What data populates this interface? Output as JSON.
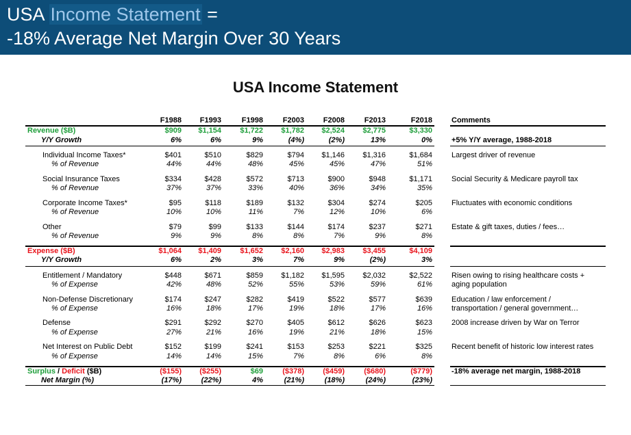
{
  "banner": {
    "line1_prefix": "USA ",
    "line1_highlight": "Income Statement",
    "line1_suffix": " =",
    "line2": "-18% Average Net Margin Over 30 Years"
  },
  "title": "USA Income Statement",
  "columns": [
    "F1988",
    "F1993",
    "F1998",
    "F2003",
    "F2008",
    "F2013",
    "F2018"
  ],
  "comments_header": "Comments",
  "colors": {
    "banner": "#0d4d78",
    "green": "#1e9e3a",
    "red": "#e8141c"
  },
  "rows": [
    {
      "label": "Revenue ($B)",
      "style": "section-green",
      "values": [
        "$909",
        "$1,154",
        "$1,722",
        "$1,782",
        "$2,524",
        "$2,775",
        "$3,330"
      ],
      "comment": ""
    },
    {
      "label": "Y/Y Growth",
      "style": "sub-bold",
      "values": [
        "6%",
        "6%",
        "9%",
        "(4%)",
        "(2%)",
        "13%",
        "0%"
      ],
      "comment": "+5% Y/Y average, 1988-2018"
    },
    {
      "label": "Individual Income Taxes*",
      "style": "item",
      "values": [
        "$401",
        "$510",
        "$829",
        "$794",
        "$1,146",
        "$1,316",
        "$1,684"
      ],
      "comment": "Largest driver of revenue"
    },
    {
      "label": "% of Revenue",
      "style": "sub",
      "values": [
        "44%",
        "44%",
        "48%",
        "45%",
        "45%",
        "47%",
        "51%"
      ],
      "comment": ""
    },
    {
      "label": "Social Insurance Taxes",
      "style": "item",
      "values": [
        "$334",
        "$428",
        "$572",
        "$713",
        "$900",
        "$948",
        "$1,171"
      ],
      "comment": "Social Security & Medicare payroll tax"
    },
    {
      "label": "% of Revenue",
      "style": "sub",
      "values": [
        "37%",
        "37%",
        "33%",
        "40%",
        "36%",
        "34%",
        "35%"
      ],
      "comment": ""
    },
    {
      "label": "Corporate Income Taxes*",
      "style": "item",
      "values": [
        "$95",
        "$118",
        "$189",
        "$132",
        "$304",
        "$274",
        "$205"
      ],
      "comment": "Fluctuates with economic conditions"
    },
    {
      "label": "% of Revenue",
      "style": "sub",
      "values": [
        "10%",
        "10%",
        "11%",
        "7%",
        "12%",
        "10%",
        "6%"
      ],
      "comment": ""
    },
    {
      "label": "Other",
      "style": "item",
      "values": [
        "$79",
        "$99",
        "$133",
        "$144",
        "$174",
        "$237",
        "$271"
      ],
      "comment": "Estate & gift taxes, duties / fees…"
    },
    {
      "label": "% of Revenue",
      "style": "sub",
      "values": [
        "9%",
        "9%",
        "8%",
        "8%",
        "7%",
        "9%",
        "8%"
      ],
      "comment": ""
    },
    {
      "label": "Expense ($B)",
      "style": "section-red",
      "values": [
        "$1,064",
        "$1,409",
        "$1,652",
        "$2,160",
        "$2,983",
        "$3,455",
        "$4,109"
      ],
      "comment": ""
    },
    {
      "label": "Y/Y Growth",
      "style": "sub-bold",
      "values": [
        "6%",
        "2%",
        "3%",
        "7%",
        "9%",
        "(2%)",
        "3%"
      ],
      "comment": ""
    },
    {
      "label": "Entitlement / Mandatory",
      "style": "item",
      "values": [
        "$448",
        "$671",
        "$859",
        "$1,182",
        "$1,595",
        "$2,032",
        "$2,522"
      ],
      "comment": "Risen owing to rising healthcare costs +"
    },
    {
      "label": "% of Expense",
      "style": "sub",
      "values": [
        "42%",
        "48%",
        "52%",
        "55%",
        "53%",
        "59%",
        "61%"
      ],
      "comment": "aging population"
    },
    {
      "label": "Non-Defense Discretionary",
      "style": "item",
      "values": [
        "$174",
        "$247",
        "$282",
        "$419",
        "$522",
        "$577",
        "$639"
      ],
      "comment": "Education / law enforcement /"
    },
    {
      "label": "% of Expense",
      "style": "sub",
      "values": [
        "16%",
        "18%",
        "17%",
        "19%",
        "18%",
        "17%",
        "16%"
      ],
      "comment": "transportation / general government…"
    },
    {
      "label": "Defense",
      "style": "item",
      "values": [
        "$291",
        "$292",
        "$270",
        "$405",
        "$612",
        "$626",
        "$623"
      ],
      "comment": "2008 increase driven by War on Terror"
    },
    {
      "label": "% of Expense",
      "style": "sub",
      "values": [
        "27%",
        "21%",
        "16%",
        "19%",
        "21%",
        "18%",
        "15%"
      ],
      "comment": ""
    },
    {
      "label": "Net Interest on Public Debt",
      "style": "item",
      "values": [
        "$152",
        "$199",
        "$241",
        "$153",
        "$253",
        "$221",
        "$325"
      ],
      "comment": "Recent benefit of historic low interest rates"
    },
    {
      "label": "% of Expense",
      "style": "sub",
      "values": [
        "14%",
        "14%",
        "15%",
        "7%",
        "8%",
        "6%",
        "8%"
      ],
      "comment": ""
    },
    {
      "label": "Surplus / Deficit ($B)",
      "label_parts": [
        "Surplus",
        "/",
        "Deficit",
        "($B)"
      ],
      "style": "section-surplus",
      "values": [
        "($155)",
        "($255)",
        "$69",
        "($378)",
        "($459)",
        "($680)",
        "($779)"
      ],
      "value_colors": [
        "red",
        "red",
        "green",
        "red",
        "red",
        "red",
        "red"
      ],
      "comment": "-18% average net margin, 1988-2018"
    },
    {
      "label": "Net Margin (%)",
      "style": "sub-bold",
      "values": [
        "(17%)",
        "(22%)",
        "4%",
        "(21%)",
        "(18%)",
        "(24%)",
        "(23%)"
      ],
      "comment": ""
    }
  ]
}
